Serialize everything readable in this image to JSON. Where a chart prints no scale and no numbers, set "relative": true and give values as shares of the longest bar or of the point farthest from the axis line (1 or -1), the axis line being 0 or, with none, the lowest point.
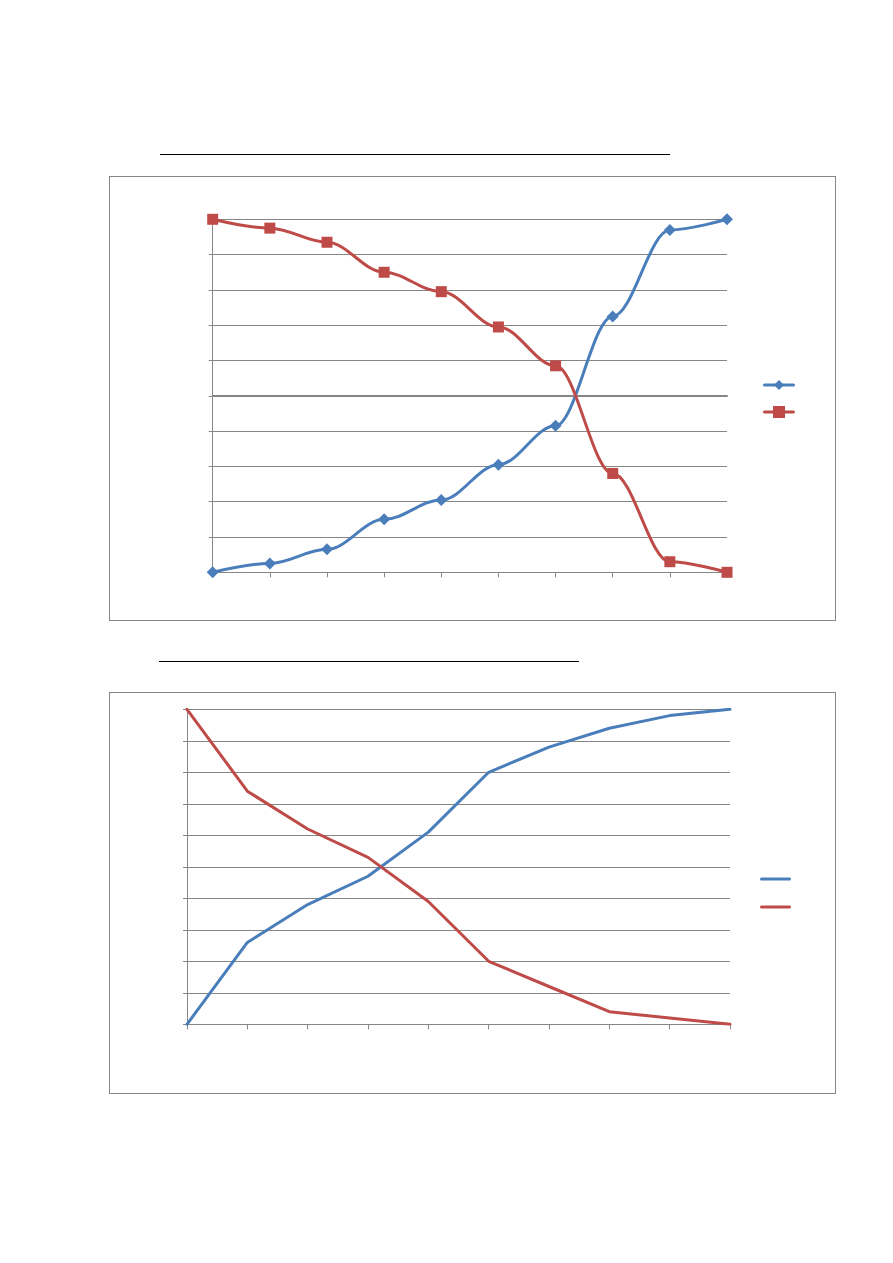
{
  "chart_data": [
    {
      "type": "line",
      "relative": true,
      "categories": [
        null,
        null,
        null,
        null,
        null,
        null,
        null,
        null,
        null,
        null
      ],
      "series": [
        {
          "color": "#4a7ebb",
          "marker": "diamond",
          "values": [
            -1,
            -0.95,
            -0.87,
            -0.7,
            -0.59,
            -0.39,
            -0.17,
            0.45,
            0.94,
            1
          ]
        },
        {
          "color": "#be4b48",
          "marker": "square",
          "values": [
            1,
            0.95,
            0.87,
            0.7,
            0.59,
            0.39,
            0.17,
            -0.44,
            -0.94,
            -1
          ]
        }
      ],
      "grid": "y"
    },
    {
      "type": "line",
      "relative": true,
      "categories": [
        null,
        null,
        null,
        null,
        null,
        null,
        null,
        null,
        null,
        null
      ],
      "series": [
        {
          "color": "#4a7ebb",
          "values": [
            0,
            0.26,
            0.38,
            0.47,
            0.61,
            0.8,
            0.88,
            0.94,
            0.98,
            1
          ]
        },
        {
          "color": "#be4b48",
          "values": [
            1,
            0.74,
            0.62,
            0.53,
            0.39,
            0.2,
            0.12,
            0.04,
            0.02,
            0
          ]
        }
      ],
      "marker": "none",
      "grid": "y"
    }
  ]
}
